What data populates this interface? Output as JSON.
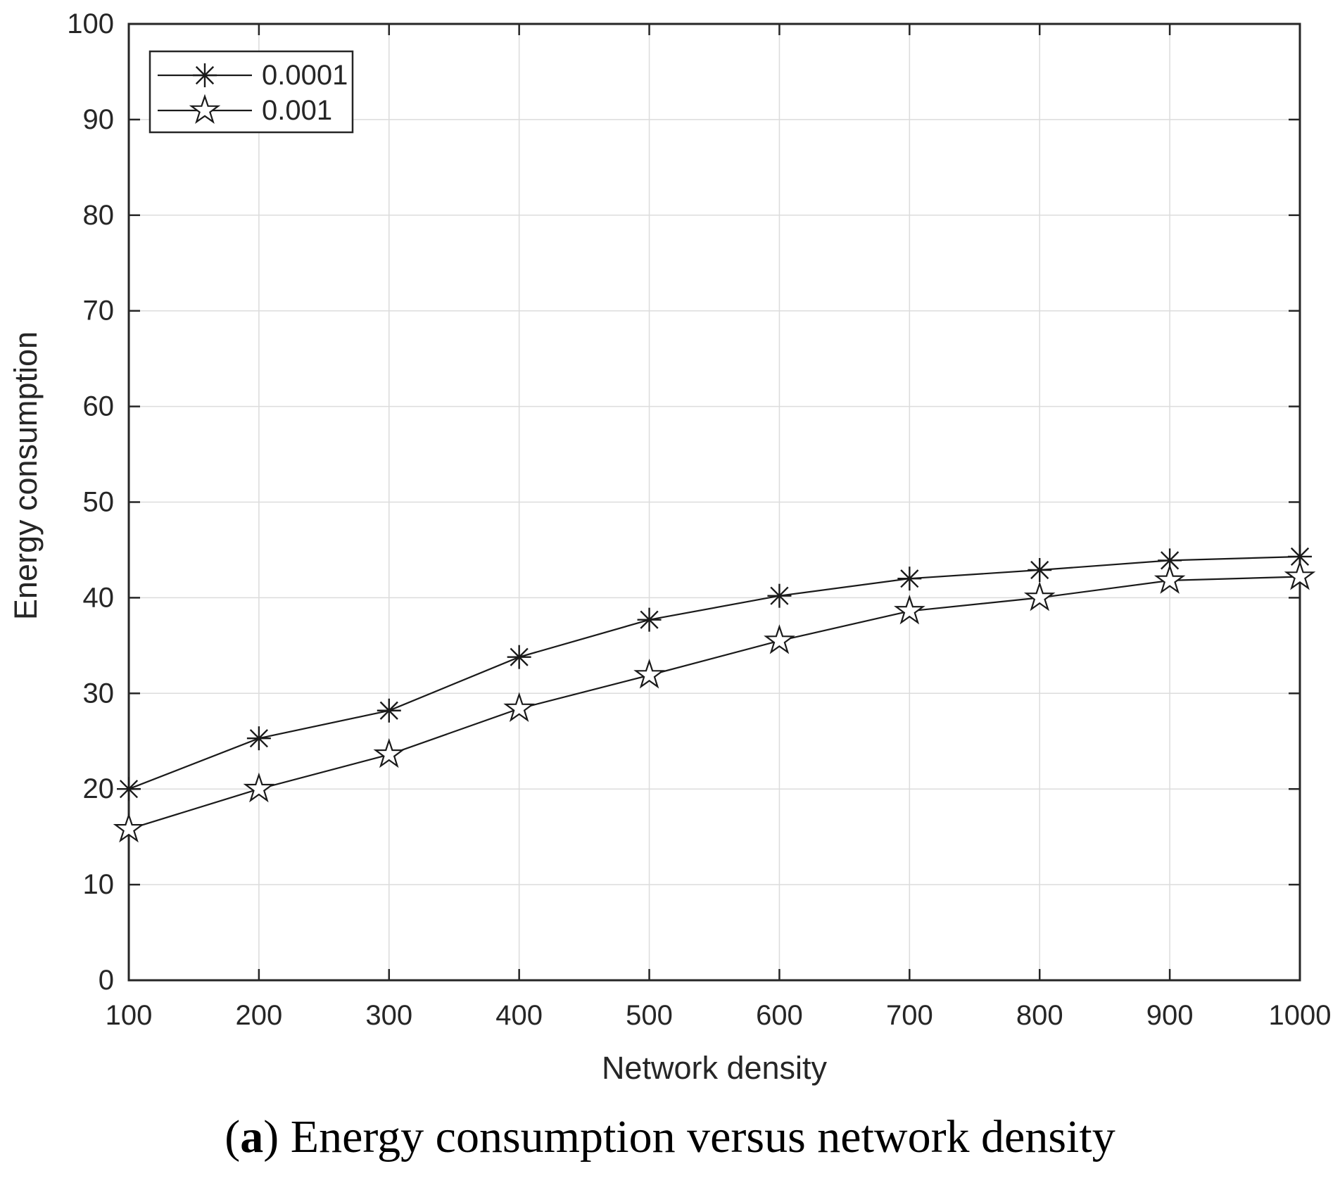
{
  "figure": {
    "caption": {
      "open_paren": "(",
      "index_label": "a",
      "close_paren": ")",
      "text": " Energy consumption versus network density"
    }
  },
  "chart_data": {
    "type": "line",
    "title": "",
    "xlabel": "Network density",
    "ylabel": "Energy consumption",
    "x": [
      100,
      200,
      300,
      400,
      500,
      600,
      700,
      800,
      900,
      1000
    ],
    "series": [
      {
        "name": "0.0001",
        "marker": "asterisk",
        "values": [
          20.0,
          25.3,
          28.2,
          33.8,
          37.7,
          40.2,
          42.0,
          42.9,
          43.9,
          44.3
        ]
      },
      {
        "name": "0.001",
        "marker": "pentagram",
        "values": [
          15.8,
          20.0,
          23.6,
          28.4,
          31.9,
          35.5,
          38.6,
          40.0,
          41.8,
          42.2
        ]
      }
    ],
    "xlim": [
      100,
      1000
    ],
    "ylim": [
      0,
      100
    ],
    "xticks": [
      100,
      200,
      300,
      400,
      500,
      600,
      700,
      800,
      900,
      1000
    ],
    "yticks": [
      0,
      10,
      20,
      30,
      40,
      50,
      60,
      70,
      80,
      90,
      100
    ],
    "grid": true,
    "legend_position": "top-left",
    "colors": {
      "line": "#1a1a1a",
      "grid": "#dcdcdc",
      "axis": "#262626",
      "text": "#262626",
      "background": "#ffffff"
    }
  }
}
